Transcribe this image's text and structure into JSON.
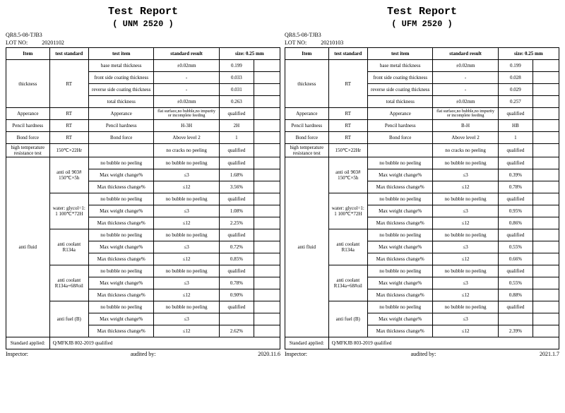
{
  "docCode": "QR8.5-08-TJB3",
  "headers": {
    "item": "Item",
    "testStandard": "test standard",
    "testItem": "test item",
    "standardResult": "standard result",
    "size": "size: 0.25 mm"
  },
  "labels": {
    "title": "Test Report",
    "lot": "LOT NO:",
    "inspector": "Inspector:",
    "audited": "audited by:",
    "standardApplied": "Standard applied:"
  },
  "rowLabels": {
    "thickness": "thickness",
    "rt": "RT",
    "baseMetal": "base metal thickness",
    "front": "front side coating thickness",
    "reverse": "reverse side coating thickness",
    "total": "total thickness",
    "appearance": "Apperance",
    "appearanceItem": "Apperance",
    "appearanceStd": "flat surface,no bubble,no impurity or incomplete feeding",
    "pencil": "Pencil hardness",
    "bond": "Bond force",
    "bondStd": "Above level 2",
    "hightemp": "high temperature resistance test",
    "hightempStd": "150℃×22Hr",
    "hightempRes": "no cracks  no peeling",
    "antifluid": "anti fluid",
    "antiOil": "anti oil 903# 150℃×5h",
    "water": "water: glycol=1: 1 100℃*72H",
    "antiCoolant": "anti coolant R134a",
    "antiCoolantOil": "anti coolant R134a+68#oil",
    "antiFuel": "anti fuel (B)",
    "noBubble": "no bubble  no peeling",
    "maxWeight": "Max weight change%",
    "maxThick": "Max thickness change%",
    "le3": "≤3",
    "le12": "≤12",
    "pm02": "±0.02mm",
    "dash": "-",
    "qualified": "qualified"
  },
  "reports": [
    {
      "subtitle": "(  UNM 2520 )",
      "lot": "20201102",
      "date": "2020.11.6",
      "standard": "Q/MFKJB 802-2019  qualified",
      "vals": {
        "baseMetal": "0.199",
        "front": "0.033",
        "reverse": "0.031",
        "total": "0.263",
        "appearance": "qualified",
        "pencilStd": "H-3H",
        "pencil": "2H",
        "bond": "1",
        "hightemp": "qualified",
        "oil_q": "qualified",
        "oil_w": "1.68%",
        "oil_t": "3.56%",
        "water_q": "qualified",
        "water_w": "1.08%",
        "water_t": "2.25%",
        "cool_q": "qualified",
        "cool_w": "0.72%",
        "cool_t": "0.85%",
        "coolOil_q": "qualified",
        "coolOil_w": "0.78%",
        "coolOil_t": "0.90%",
        "fuel_q": "qualified",
        "fuel_t": "2.62%"
      }
    },
    {
      "subtitle": "(  UFM 2520 )",
      "lot": "20210103",
      "date": "2021.1.7",
      "standard": "Q/MFKJB 803-2019  qualified",
      "vals": {
        "baseMetal": "0.199",
        "front": "0.028",
        "reverse": "0.029",
        "total": "0.257",
        "appearance": "qualified",
        "pencilStd": "B-H",
        "pencil": "HB",
        "bond": "1",
        "hightemp": "qualified",
        "oil_q": "qualified",
        "oil_w": "0.39%",
        "oil_t": "0.78%",
        "water_q": "qualified",
        "water_w": "0.95%",
        "water_t": "0.86%",
        "cool_q": "qualified",
        "cool_w": "0.55%",
        "cool_t": "0.66%",
        "coolOil_q": "qualified",
        "coolOil_w": "0.55%",
        "coolOil_t": "0.88%",
        "fuel_q": "qualified",
        "fuel_t": "2.39%"
      }
    }
  ]
}
